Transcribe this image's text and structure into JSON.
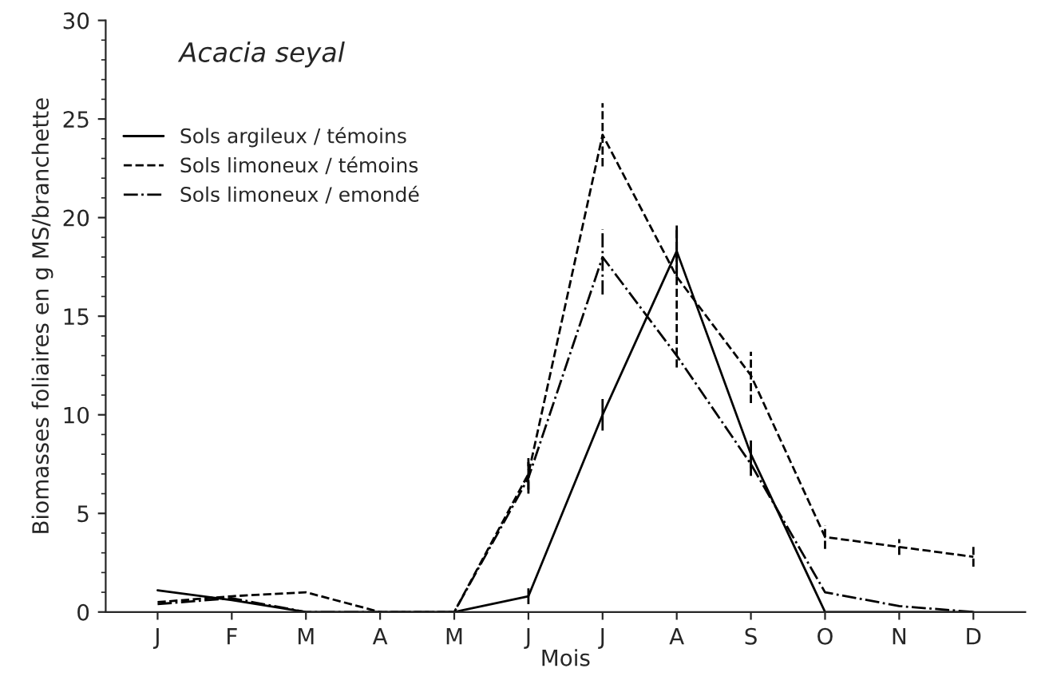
{
  "chart_data": {
    "type": "line",
    "title": "Acacia seyal",
    "xlabel": "Mois",
    "ylabel": "Biomasses foliaires en g MS/branchette",
    "categories": [
      "J",
      "F",
      "M",
      "A",
      "M",
      "J",
      "J",
      "A",
      "S",
      "O",
      "N",
      "D"
    ],
    "series": [
      {
        "name": "Sols argileux / témoins",
        "color": "#000000",
        "line_style": "solid",
        "values": [
          1.1,
          0.6,
          0,
          0,
          0,
          0.8,
          10,
          18.3,
          8,
          0,
          0,
          0
        ],
        "errors": [
          null,
          null,
          null,
          null,
          null,
          0.4,
          0.8,
          1.3,
          0.7,
          null,
          null,
          null
        ]
      },
      {
        "name": "Sols limoneux / témoins",
        "color": "#000000",
        "line_style": "dashed",
        "values": [
          0.5,
          0.8,
          1.0,
          0,
          0,
          7,
          24.2,
          17,
          12,
          3.8,
          3.3,
          2.8
        ],
        "errors": [
          null,
          null,
          null,
          null,
          null,
          0.8,
          1.6,
          [
            12.4,
            19.4
          ],
          [
            10.6,
            13.2
          ],
          [
            3.2,
            4.4
          ],
          0.4,
          0.5
        ]
      },
      {
        "name": "Sols limoneux / emondé",
        "color": "#000000",
        "line_style": "dashdot",
        "values": [
          0.4,
          0.7,
          0,
          0,
          0,
          6.8,
          18,
          13,
          7.5,
          1.0,
          0.3,
          0
        ],
        "errors": [
          null,
          null,
          null,
          null,
          null,
          0.8,
          [
            16.1,
            19.4
          ],
          null,
          0.6,
          null,
          null,
          null
        ]
      }
    ],
    "ylim": [
      0,
      30
    ],
    "yticks": [
      0,
      5,
      10,
      15,
      20,
      25,
      30
    ],
    "grid": false,
    "legend": "top left",
    "marker": "none"
  }
}
